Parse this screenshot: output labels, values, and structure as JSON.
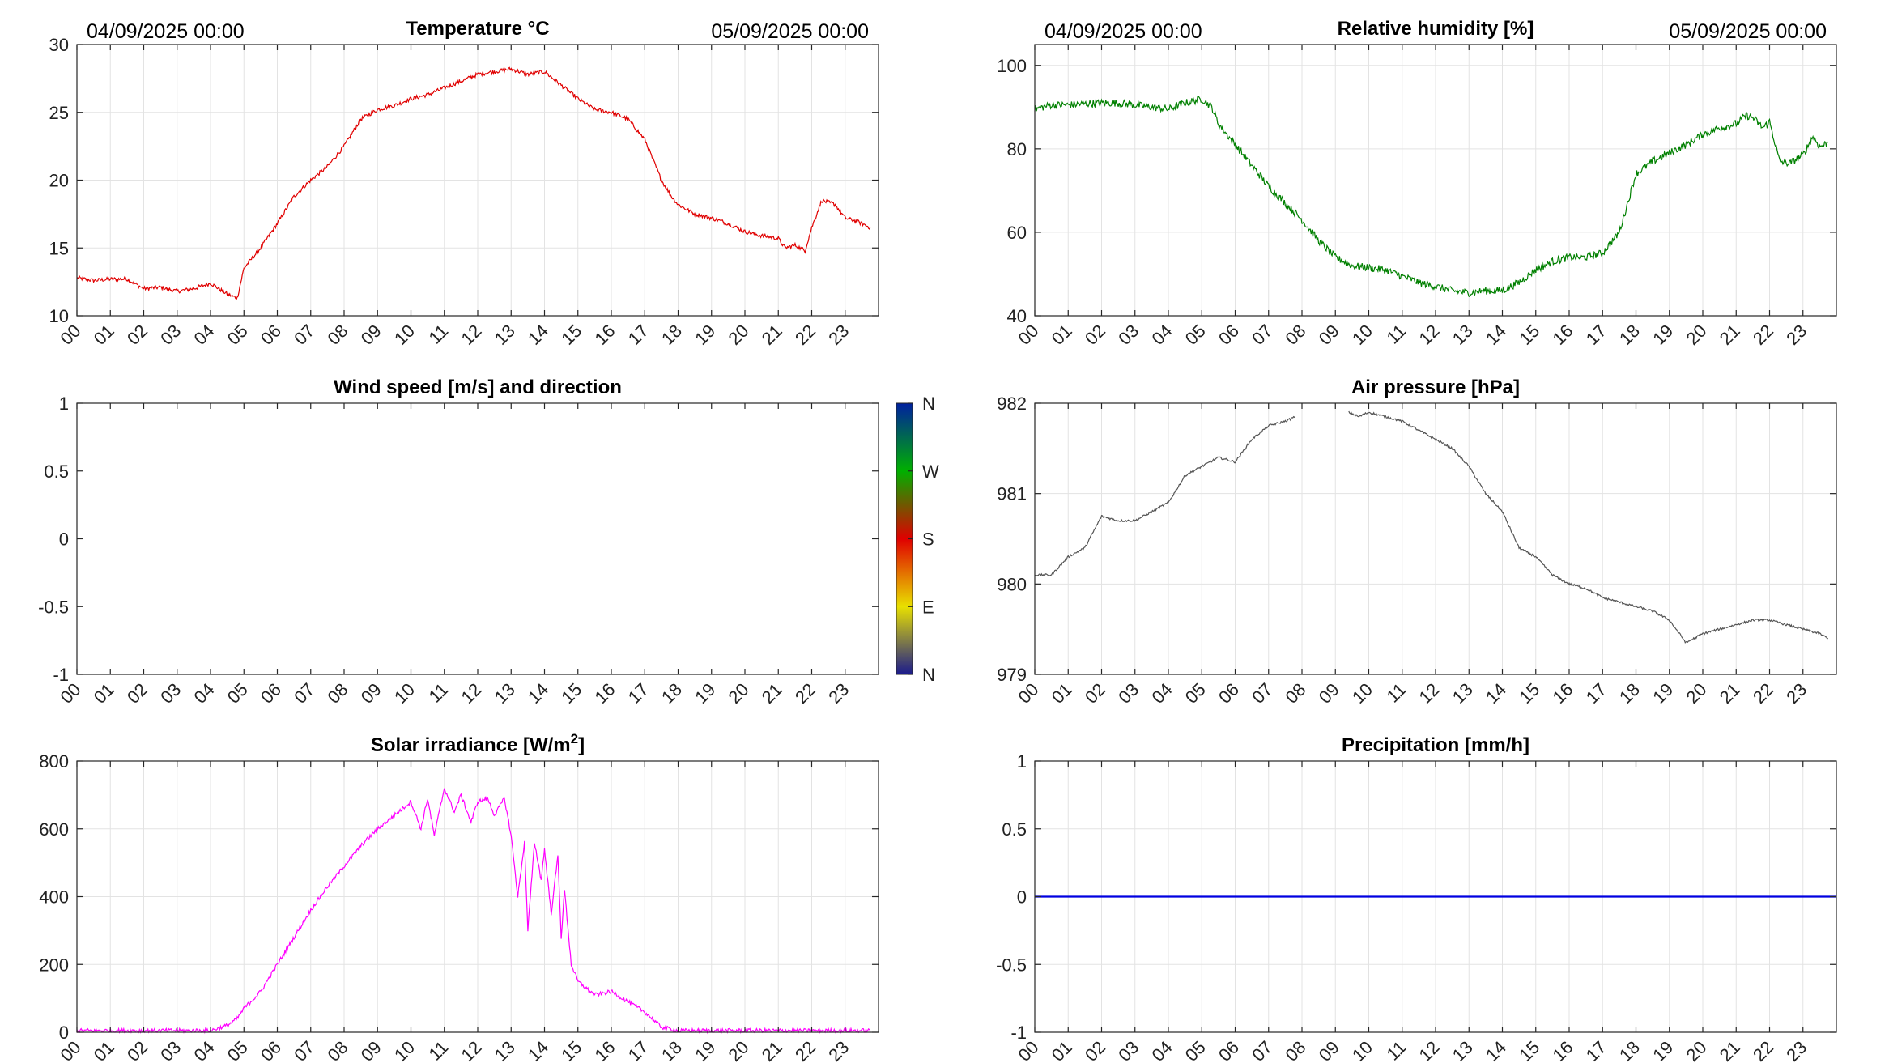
{
  "chart_data": [
    {
      "id": "temperature",
      "type": "line",
      "title": "Temperature °C",
      "date_left": "04/09/2025 00:00",
      "date_right": "05/09/2025 00:00",
      "xlim": [
        0,
        24
      ],
      "x_ticks": [
        "00",
        "01",
        "02",
        "03",
        "04",
        "05",
        "06",
        "07",
        "08",
        "09",
        "10",
        "11",
        "12",
        "13",
        "14",
        "15",
        "16",
        "17",
        "18",
        "19",
        "20",
        "21",
        "22",
        "23"
      ],
      "ylim": [
        10,
        30
      ],
      "y_ticks": [
        "10",
        "15",
        "20",
        "25",
        "30"
      ],
      "grid": true,
      "series": [
        {
          "color": "#e00000",
          "noise": 0.15,
          "x": [
            0,
            0.5,
            1,
            1.5,
            2,
            2.5,
            3,
            3.5,
            4,
            4.5,
            4.8,
            5,
            5.5,
            6,
            6.5,
            7,
            7.5,
            8,
            8.5,
            9,
            9.5,
            10,
            10.5,
            11,
            11.5,
            12,
            12.5,
            13,
            13.5,
            14,
            14.5,
            15,
            15.5,
            16,
            16.5,
            17,
            17.5,
            17.8,
            18,
            18.5,
            19,
            19.5,
            20,
            20.5,
            21,
            21.2,
            21.5,
            21.8,
            22,
            22.3,
            22.7,
            23,
            23.3,
            23.5,
            23.75
          ],
          "y": [
            12.8,
            12.6,
            12.7,
            12.7,
            12.0,
            12.1,
            11.8,
            12.0,
            12.4,
            11.6,
            11.3,
            13.5,
            15.0,
            16.8,
            18.8,
            20.0,
            21.0,
            22.5,
            24.5,
            25.2,
            25.5,
            26.0,
            26.3,
            26.8,
            27.3,
            27.8,
            28.0,
            28.2,
            27.8,
            28.0,
            27.0,
            26.0,
            25.2,
            25.0,
            24.5,
            23.0,
            20.0,
            18.8,
            18.2,
            17.5,
            17.2,
            16.8,
            16.2,
            15.9,
            15.7,
            15.0,
            15.2,
            14.8,
            16.5,
            18.5,
            18.2,
            17.2,
            17.0,
            16.8,
            16.5
          ]
        }
      ]
    },
    {
      "id": "humidity",
      "type": "line",
      "title": "Relative humidity [%]",
      "date_left": "04/09/2025 00:00",
      "date_right": "05/09/2025 00:00",
      "xlim": [
        0,
        24
      ],
      "x_ticks": [
        "00",
        "01",
        "02",
        "03",
        "04",
        "05",
        "06",
        "07",
        "08",
        "09",
        "10",
        "11",
        "12",
        "13",
        "14",
        "15",
        "16",
        "17",
        "18",
        "19",
        "20",
        "21",
        "22",
        "23"
      ],
      "ylim": [
        40,
        105
      ],
      "y_ticks": [
        "40",
        "60",
        "80",
        "100"
      ],
      "grid": true,
      "series": [
        {
          "color": "#008000",
          "noise": 0.9,
          "x": [
            0,
            0.5,
            1,
            1.5,
            2,
            2.5,
            3,
            3.5,
            4,
            4.5,
            5,
            5.3,
            5.5,
            6,
            6.5,
            7,
            7.5,
            8,
            8.5,
            9,
            9.5,
            10,
            10.5,
            11,
            11.5,
            12,
            12.5,
            13,
            13.5,
            14,
            14.5,
            15,
            15.5,
            16,
            16.5,
            17,
            17.5,
            18,
            18.5,
            19,
            19.5,
            20,
            20.5,
            21,
            21.3,
            21.5,
            21.8,
            22,
            22.3,
            22.6,
            23,
            23.3,
            23.5,
            23.75
          ],
          "y": [
            89.5,
            90.5,
            90.5,
            90.8,
            91.0,
            91.0,
            90.5,
            90.0,
            89.5,
            91.0,
            92.0,
            90.0,
            86.0,
            81.0,
            76.0,
            71.0,
            67.0,
            63.0,
            58.0,
            54.0,
            52.0,
            51.5,
            51.0,
            49.5,
            48.0,
            47.0,
            46.0,
            45.5,
            46.0,
            46.0,
            48.0,
            51.0,
            53.0,
            54.0,
            54.0,
            55.0,
            60.0,
            74.0,
            77.0,
            79.0,
            81.0,
            83.5,
            85.0,
            86.0,
            88.0,
            87.5,
            85.0,
            86.5,
            77.0,
            76.5,
            78.5,
            83.0,
            80.5,
            81.5
          ]
        }
      ]
    },
    {
      "id": "wind",
      "type": "scatter",
      "title": "Wind speed [m/s] and direction",
      "xlim": [
        0,
        24
      ],
      "x_ticks": [
        "00",
        "01",
        "02",
        "03",
        "04",
        "05",
        "06",
        "07",
        "08",
        "09",
        "10",
        "11",
        "12",
        "13",
        "14",
        "15",
        "16",
        "17",
        "18",
        "19",
        "20",
        "21",
        "22",
        "23"
      ],
      "ylim": [
        -1,
        1
      ],
      "y_ticks": [
        "-1",
        "-0.5",
        "0",
        "0.5",
        "1"
      ],
      "grid": false,
      "colorbar": {
        "labels": [
          "N",
          "E",
          "S",
          "W",
          "N"
        ],
        "colors": [
          "#1a1a8c",
          "#e8e000",
          "#e00000",
          "#00b000",
          "#0020a0"
        ]
      },
      "series": []
    },
    {
      "id": "pressure",
      "type": "line",
      "title": "Air pressure [hPa]",
      "xlim": [
        0,
        24
      ],
      "x_ticks": [
        "00",
        "01",
        "02",
        "03",
        "04",
        "05",
        "06",
        "07",
        "08",
        "09",
        "10",
        "11",
        "12",
        "13",
        "14",
        "15",
        "16",
        "17",
        "18",
        "19",
        "20",
        "21",
        "22",
        "23"
      ],
      "ylim": [
        979,
        982
      ],
      "y_ticks": [
        "979",
        "980",
        "981",
        "982"
      ],
      "grid": true,
      "series": [
        {
          "color": "#555555",
          "noise": 0.012,
          "x": [
            0,
            0.5,
            1,
            1.5,
            2,
            2.5,
            3,
            3.5,
            4,
            4.5,
            5,
            5.5,
            6,
            6.5,
            7,
            7.5,
            7.8
          ],
          "y": [
            980.1,
            980.1,
            980.3,
            980.4,
            980.75,
            980.7,
            980.7,
            980.8,
            980.9,
            981.2,
            981.3,
            981.4,
            981.35,
            981.6,
            981.75,
            981.8,
            981.85
          ]
        },
        {
          "color": "#555555",
          "noise": 0.012,
          "x": [
            9.4,
            9.7,
            10,
            10.5,
            11,
            11.5,
            12,
            12.5,
            13,
            13.5,
            14,
            14.5,
            15,
            15.5,
            16,
            16.5,
            17,
            17.5,
            18,
            18.5,
            19,
            19.5,
            20,
            20.5,
            21,
            21.5,
            22,
            22.5,
            23,
            23.5,
            23.75
          ],
          "y": [
            981.9,
            981.85,
            981.9,
            981.85,
            981.8,
            981.7,
            981.6,
            981.5,
            981.3,
            981.0,
            980.8,
            980.4,
            980.3,
            980.1,
            980.0,
            979.95,
            979.85,
            979.8,
            979.75,
            979.7,
            979.6,
            979.35,
            979.45,
            979.5,
            979.55,
            979.6,
            979.6,
            979.55,
            979.5,
            979.45,
            979.4
          ]
        }
      ]
    },
    {
      "id": "solar",
      "type": "line",
      "title": "Solar irradiance [W/m",
      "title_sup": "2",
      "title_end": "]",
      "xlim": [
        0,
        24
      ],
      "x_ticks": [
        "00",
        "01",
        "02",
        "03",
        "04",
        "05",
        "06",
        "07",
        "08",
        "09",
        "10",
        "11",
        "12",
        "13",
        "14",
        "15",
        "16",
        "17",
        "18",
        "19",
        "20",
        "21",
        "22",
        "23"
      ],
      "ylim": [
        0,
        800
      ],
      "y_ticks": [
        "0",
        "200",
        "400",
        "600",
        "800"
      ],
      "grid": true,
      "series": [
        {
          "color": "#ff00ff",
          "noise": 6,
          "x": [
            0,
            1,
            2,
            3,
            3.5,
            4,
            4.5,
            4.8,
            5,
            5.5,
            6,
            6.5,
            7,
            7.5,
            8,
            8.5,
            9,
            9.5,
            10,
            10.3,
            10.5,
            10.7,
            11,
            11.3,
            11.5,
            11.8,
            12,
            12.3,
            12.5,
            12.8,
            13,
            13.2,
            13.4,
            13.5,
            13.7,
            13.9,
            14,
            14.2,
            14.4,
            14.5,
            14.6,
            14.8,
            15,
            15.5,
            16,
            16.5,
            17,
            17.5,
            18,
            19,
            20,
            21,
            22,
            23,
            23.75
          ],
          "y": [
            5,
            5,
            5,
            5,
            5,
            5,
            20,
            40,
            70,
            120,
            200,
            280,
            360,
            430,
            490,
            550,
            600,
            640,
            680,
            600,
            690,
            580,
            720,
            650,
            700,
            620,
            680,
            690,
            640,
            690,
            580,
            400,
            560,
            300,
            560,
            450,
            540,
            350,
            520,
            280,
            420,
            200,
            150,
            110,
            120,
            90,
            60,
            15,
            5,
            5,
            5,
            5,
            5,
            5,
            5
          ]
        }
      ]
    },
    {
      "id": "precipitation",
      "type": "line",
      "title": "Precipitation [mm/h]",
      "xlim": [
        0,
        24
      ],
      "x_ticks": [
        "00",
        "01",
        "02",
        "03",
        "04",
        "05",
        "06",
        "07",
        "08",
        "09",
        "10",
        "11",
        "12",
        "13",
        "14",
        "15",
        "16",
        "17",
        "18",
        "19",
        "20",
        "21",
        "22",
        "23"
      ],
      "ylim": [
        -1,
        1
      ],
      "y_ticks": [
        "-1",
        "-0.5",
        "0",
        "0.5",
        "1"
      ],
      "grid": true,
      "series": [
        {
          "color": "#0000e0",
          "noise": 0,
          "x": [
            0,
            24
          ],
          "y": [
            0,
            0
          ]
        }
      ]
    }
  ]
}
